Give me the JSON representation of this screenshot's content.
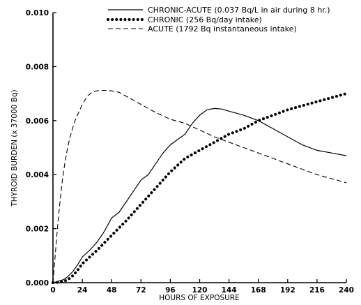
{
  "chart_data": {
    "type": "line",
    "xlabel": "HOURS OF EXPOSURE",
    "ylabel": "THYROID BURDEN (x 37000 Bq)",
    "xlim": [
      0,
      240
    ],
    "ylim": [
      0,
      0.01
    ],
    "xticks": [
      0,
      24,
      48,
      72,
      96,
      120,
      144,
      168,
      192,
      216,
      240
    ],
    "yticks": [
      "0.000",
      "0.002",
      "0.004",
      "0.006",
      "0.008",
      "0.010"
    ],
    "grid": false,
    "legend_position": "top",
    "series": [
      {
        "name": "CHRONIC-ACUTE (0.037 Bq/L in air during 8 hr.)",
        "style": "solid",
        "color": "#000000",
        "x": [
          0,
          2,
          4,
          6,
          8,
          10,
          12,
          16,
          20,
          24,
          30,
          36,
          42,
          48,
          54,
          60,
          66,
          72,
          78,
          84,
          90,
          96,
          102,
          108,
          114,
          120,
          126,
          132,
          138,
          144,
          156,
          168,
          180,
          192,
          204,
          216,
          228,
          240
        ],
        "y": [
          0.0,
          2e-05,
          5e-05,
          8e-05,
          0.0001,
          0.00015,
          0.00022,
          0.0004,
          0.00065,
          0.00095,
          0.0012,
          0.0015,
          0.0019,
          0.0024,
          0.0026,
          0.003,
          0.0034,
          0.0038,
          0.004,
          0.0044,
          0.0048,
          0.0051,
          0.0053,
          0.0055,
          0.0059,
          0.0062,
          0.0064,
          0.00645,
          0.00643,
          0.00635,
          0.0062,
          0.006,
          0.0057,
          0.0054,
          0.0051,
          0.0049,
          0.0048,
          0.0047
        ]
      },
      {
        "name": "CHRONIC (256 Bq/day intake)",
        "style": "dotted",
        "color": "#000000",
        "x": [
          0,
          4,
          8,
          12,
          16,
          20,
          24,
          36,
          48,
          60,
          72,
          84,
          96,
          108,
          120,
          132,
          144,
          156,
          168,
          180,
          192,
          204,
          216,
          228,
          240
        ],
        "y": [
          0.0,
          1e-05,
          4e-05,
          0.0001,
          0.00025,
          0.00045,
          0.0007,
          0.0012,
          0.00175,
          0.0023,
          0.0029,
          0.0035,
          0.0041,
          0.0046,
          0.0049,
          0.0052,
          0.0055,
          0.0057,
          0.006,
          0.0062,
          0.0064,
          0.00655,
          0.0067,
          0.00685,
          0.007
        ]
      },
      {
        "name": "ACUTE (1792 Bq instantaneous intake)",
        "style": "dashed",
        "color": "#000000",
        "x": [
          0,
          2,
          4,
          6,
          8,
          10,
          12,
          14,
          16,
          18,
          20,
          24,
          28,
          32,
          36,
          40,
          44,
          48,
          54,
          60,
          72,
          84,
          96,
          108,
          120,
          132,
          144,
          156,
          168,
          180,
          192,
          204,
          216,
          228,
          240
        ],
        "y": [
          0.0,
          0.0011,
          0.0022,
          0.0031,
          0.0039,
          0.0045,
          0.005,
          0.0054,
          0.0057,
          0.006,
          0.0062,
          0.0066,
          0.0069,
          0.00705,
          0.0071,
          0.00712,
          0.00712,
          0.0071,
          0.00705,
          0.0069,
          0.0066,
          0.0063,
          0.00605,
          0.0059,
          0.00565,
          0.0054,
          0.0052,
          0.005,
          0.0048,
          0.0046,
          0.0044,
          0.0042,
          0.004,
          0.00385,
          0.0037
        ]
      }
    ]
  }
}
